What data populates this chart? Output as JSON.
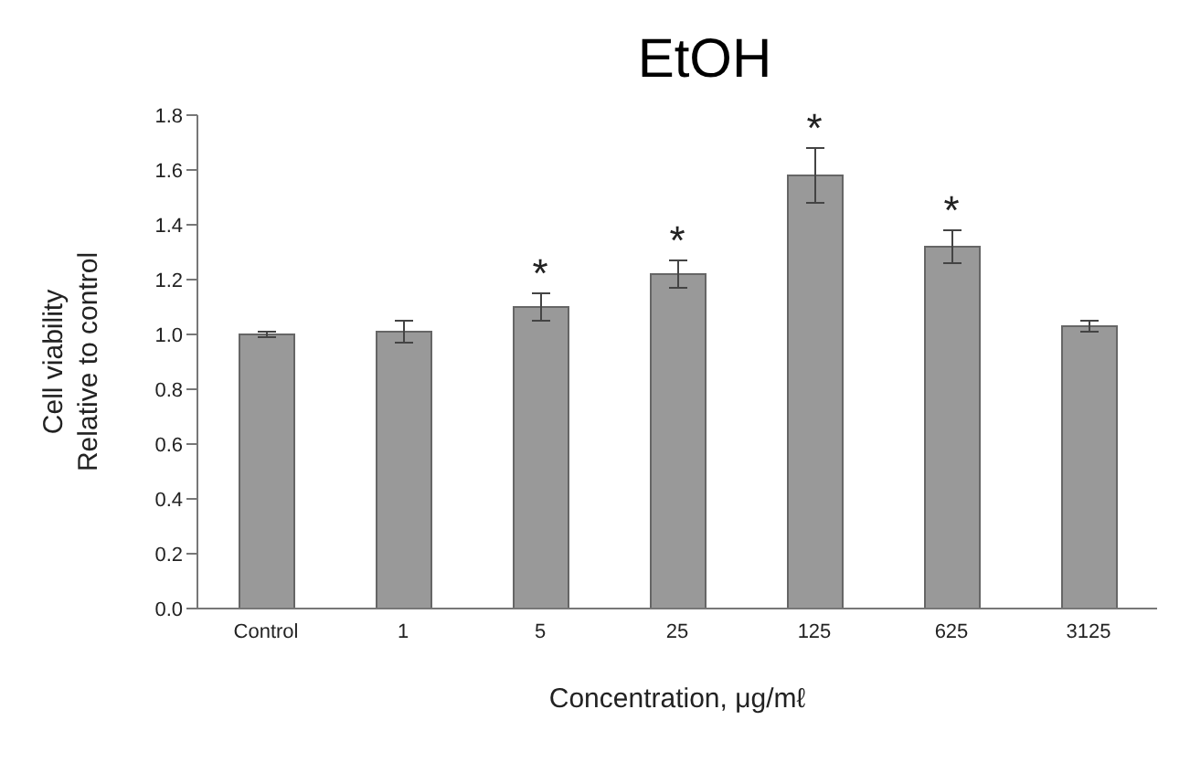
{
  "chart_data": {
    "type": "bar",
    "title": "EtOH",
    "xlabel": "Concentration, μg/mℓ",
    "ylabel": "Cell viability\nRelative to control",
    "categories": [
      "Control",
      "1",
      "5",
      "25",
      "125",
      "625",
      "3125"
    ],
    "values": [
      1.0,
      1.01,
      1.1,
      1.22,
      1.58,
      1.32,
      1.03
    ],
    "errors": [
      0.01,
      0.04,
      0.05,
      0.05,
      0.1,
      0.06,
      0.02
    ],
    "color": "#999999",
    "ylim": [
      0,
      1.8
    ],
    "yticks": [
      {
        "value": 0,
        "label": "0.0"
      },
      0.2,
      0.4,
      0.6,
      0.8,
      {
        "value": 1,
        "label": "1.0"
      },
      1.2,
      1.4,
      1.6,
      1.8
    ],
    "grid": false,
    "annotations": [
      {
        "text": "*",
        "x": "5",
        "y": 1.1
      },
      {
        "text": "*",
        "x": "25",
        "y": 1.22
      },
      {
        "text": "*",
        "x": "125",
        "y": 1.58
      },
      {
        "text": "*",
        "x": "625",
        "y": 1.32
      }
    ]
  }
}
